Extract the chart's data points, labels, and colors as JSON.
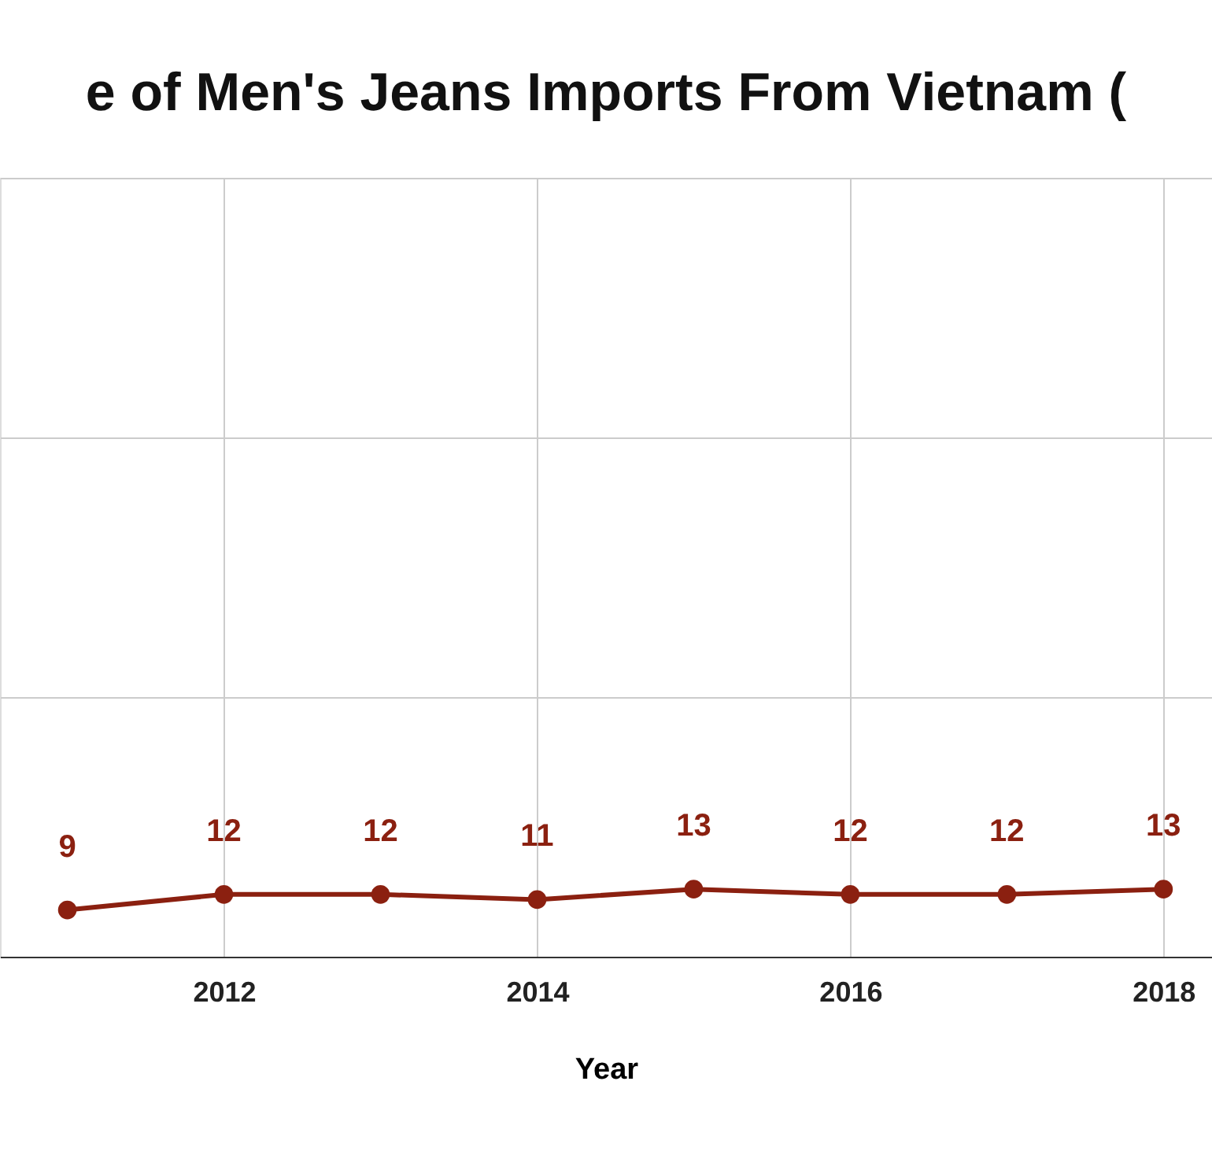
{
  "chart_data": {
    "type": "line",
    "title": "e of Men's Jeans Imports From Vietnam (",
    "xlabel": "Year",
    "x": [
      2011,
      2012,
      2013,
      2014,
      2015,
      2016,
      2017,
      2018
    ],
    "series": [
      {
        "color": "#8b2010",
        "values": [
          9,
          12,
          12,
          11,
          13,
          12,
          12,
          13
        ]
      }
    ],
    "xlim": [
      2010.57,
      2018.31
    ],
    "xticks": [
      2012,
      2014,
      2016,
      2018
    ],
    "ylim": [
      0,
      150
    ],
    "yticks": [
      {
        "value": 0,
        "label": null
      },
      {
        "value": 50,
        "label": null
      },
      {
        "value": 100,
        "label": null
      },
      {
        "value": 150,
        "label": null
      }
    ],
    "tick_labels": "x",
    "grid": true,
    "marker": "circle",
    "line_style": "solid",
    "data_labels": true
  }
}
